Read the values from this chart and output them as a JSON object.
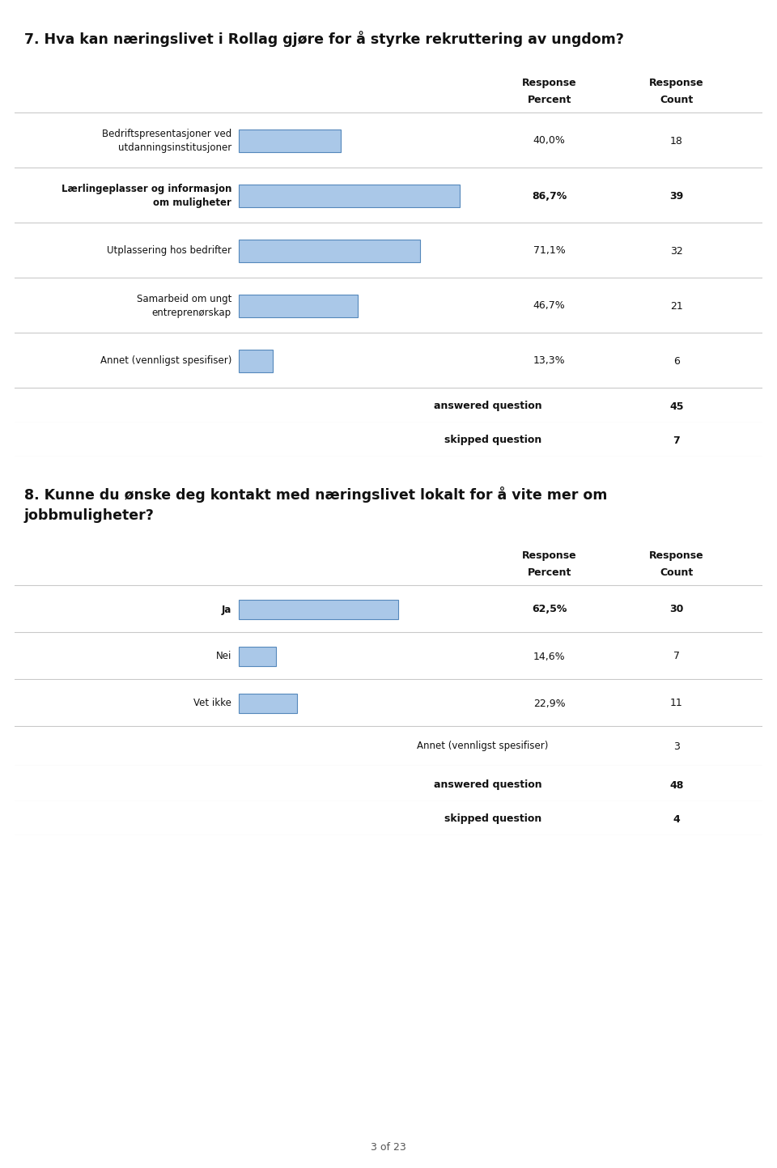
{
  "q7_title": "7. Hva kan næringslivet i Rollag gjøre for å styrke rekruttering av ungdom?",
  "q7_title_bg": "#d6dfa8",
  "q7_rows": [
    {
      "label": "Bedriftspresentasjoner ved\nutdanningsinstitusjoner",
      "pct": 40.0,
      "pct_str": "40,0%",
      "count": 18,
      "bold": false
    },
    {
      "label": "Lærlingeplasser og informasjon\nom muligheter",
      "pct": 86.7,
      "pct_str": "86,7%",
      "count": 39,
      "bold": true
    },
    {
      "label": "Utplassering hos bedrifter",
      "pct": 71.1,
      "pct_str": "71,1%",
      "count": 32,
      "bold": false
    },
    {
      "label": "Samarbeid om ungt\nentreprenørskap",
      "pct": 46.7,
      "pct_str": "46,7%",
      "count": 21,
      "bold": false
    },
    {
      "label": "Annet (vennligst spesifiser)",
      "pct": 13.3,
      "pct_str": "13,3%",
      "count": 6,
      "bold": false
    }
  ],
  "q7_answered": 45,
  "q7_skipped": 7,
  "q8_title": "8. Kunne du ønske deg kontakt med næringslivet lokalt for å vite mer om\njobbmuligheter?",
  "q8_title_bg": "#d6dfa8",
  "q8_rows": [
    {
      "label": "Ja",
      "pct": 62.5,
      "pct_str": "62,5%",
      "count": 30,
      "bold": true
    },
    {
      "label": "Nei",
      "pct": 14.6,
      "pct_str": "14,6%",
      "count": 7,
      "bold": false
    },
    {
      "label": "Vet ikke",
      "pct": 22.9,
      "pct_str": "22,9%",
      "count": 11,
      "bold": false
    }
  ],
  "q8_annet_label": "Annet (vennligst spesifiser)",
  "q8_annet_count": 3,
  "q8_answered": 48,
  "q8_skipped": 4,
  "bar_color_face": "#aac8e8",
  "bar_color_edge": "#5588bb",
  "bar_max_pct": 100.0,
  "header_bg": "#e4e4e4",
  "row_bg_light": "#f2f2f2",
  "row_bg_dark": "#e4e4e4",
  "footer_bg": "#d8d8d8",
  "page_footer": "3 of 23",
  "outer_bg": "#ffffff",
  "border_color": "#c8c8c8"
}
